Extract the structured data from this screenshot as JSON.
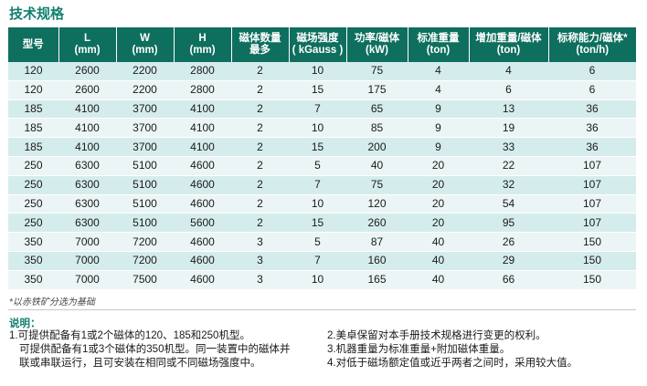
{
  "section_title": "技术规格",
  "table": {
    "headers": [
      [
        "型号"
      ],
      [
        "L",
        "(mm)"
      ],
      [
        "W",
        "(mm)"
      ],
      [
        "H",
        "(mm)"
      ],
      [
        "磁体数量",
        "最多"
      ],
      [
        "磁场强度",
        "( kGauss )"
      ],
      [
        "功率/磁体",
        "(kW)"
      ],
      [
        "标准重量",
        "(ton)"
      ],
      [
        "增加重量/磁体",
        "(ton)"
      ],
      [
        "标称能力/磁体*",
        "(ton/h)"
      ]
    ],
    "rows": [
      [
        "120",
        "2600",
        "2200",
        "2800",
        "2",
        "10",
        "75",
        "4",
        "4",
        "6"
      ],
      [
        "120",
        "2600",
        "2200",
        "2800",
        "2",
        "15",
        "175",
        "4",
        "6",
        "6"
      ],
      [
        "185",
        "4100",
        "3700",
        "4100",
        "2",
        "7",
        "65",
        "9",
        "13",
        "36"
      ],
      [
        "185",
        "4100",
        "3700",
        "4100",
        "2",
        "10",
        "85",
        "9",
        "19",
        "36"
      ],
      [
        "185",
        "4100",
        "3700",
        "4100",
        "2",
        "15",
        "200",
        "9",
        "33",
        "36"
      ],
      [
        "250",
        "6300",
        "5100",
        "4600",
        "2",
        "5",
        "40",
        "20",
        "22",
        "107"
      ],
      [
        "250",
        "6300",
        "5100",
        "4600",
        "2",
        "7",
        "75",
        "20",
        "32",
        "107"
      ],
      [
        "250",
        "6300",
        "5100",
        "4600",
        "2",
        "10",
        "120",
        "20",
        "54",
        "107"
      ],
      [
        "250",
        "6300",
        "5100",
        "5600",
        "2",
        "15",
        "260",
        "20",
        "95",
        "107"
      ],
      [
        "350",
        "7000",
        "7200",
        "4600",
        "3",
        "5",
        "87",
        "40",
        "26",
        "150"
      ],
      [
        "350",
        "7000",
        "7200",
        "4600",
        "3",
        "7",
        "160",
        "40",
        "29",
        "150"
      ],
      [
        "350",
        "7000",
        "7500",
        "4600",
        "3",
        "10",
        "165",
        "40",
        "66",
        "150"
      ]
    ]
  },
  "footnote": "*以赤铁矿分选为基础",
  "notes": {
    "title": "说明：",
    "left": [
      "1.可提供配备有1或2个磁体的120、185和250机型。",
      "可提供配备有1或3个磁体的350机型。同一装置中的磁体并",
      "联或串联运行，且可安装在相同或不同磁场强度中。"
    ],
    "right": [
      "2.美卓保留对本手册技术规格进行变更的权利。",
      "3.机器重量为标准重量+附加磁体重量。",
      "4.对低于磁场额定值或近乎两者之间时，采用较大值。"
    ]
  },
  "colors": {
    "title": "#12806f",
    "header_bg": "#0f6f5e",
    "row_odd": "#d5ecec",
    "row_even": "#ebf5f5"
  }
}
